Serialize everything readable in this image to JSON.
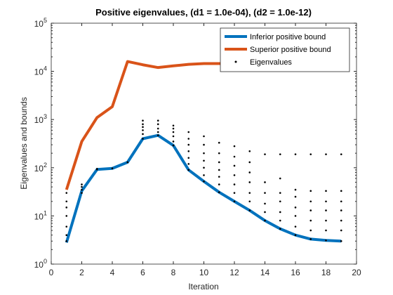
{
  "chart_data": {
    "type": "line",
    "title": "Positive eigenvalues, (d1 = 1.0e-04), (d2 = 1.0e-12)",
    "xlabel": "Iteration",
    "ylabel": "Eigenvalues and bounds",
    "xlim": [
      0,
      20
    ],
    "xticks": [
      0,
      2,
      4,
      6,
      8,
      10,
      12,
      14,
      16,
      18,
      20
    ],
    "ylim": [
      1,
      100000
    ],
    "yscale": "log",
    "yticks": [
      {
        "value": 1,
        "label": "10",
        "exponent": "0"
      },
      {
        "value": 10,
        "label": "10",
        "exponent": "1"
      },
      {
        "value": 100,
        "label": "10",
        "exponent": "2"
      },
      {
        "value": 1000,
        "label": "10",
        "exponent": "3"
      },
      {
        "value": 10000,
        "label": "10",
        "exponent": "4"
      },
      {
        "value": 100000,
        "label": "10",
        "exponent": "5"
      }
    ],
    "legend": "northeast",
    "series": [
      {
        "name": "Inferior positive bound",
        "color": "#0072BD",
        "mode": "line",
        "x": [
          1,
          2,
          3,
          4,
          5,
          6,
          7,
          8,
          9,
          10,
          11,
          12,
          13,
          14,
          15,
          16,
          17,
          18,
          19
        ],
        "values": [
          2.8,
          33,
          92,
          97,
          130,
          400,
          470,
          290,
          90,
          52,
          31,
          20,
          13,
          8,
          5.4,
          4,
          3.3,
          3.1,
          3.0
        ]
      },
      {
        "name": "Superior positive bound",
        "color": "#D95319",
        "mode": "line",
        "x": [
          1,
          2,
          3,
          4,
          5,
          6,
          7,
          8,
          9,
          10,
          11,
          12,
          13,
          14,
          15,
          16,
          17,
          18,
          19
        ],
        "values": [
          35,
          350,
          1100,
          1850,
          16000,
          13700,
          12000,
          13000,
          14000,
          14500,
          14500,
          14500,
          14500,
          14500,
          14500,
          14500,
          14500,
          14500,
          14500
        ]
      },
      {
        "name": "Eigenvalues",
        "color": "#000000",
        "mode": "markers",
        "x": [
          1,
          1,
          1,
          1,
          1,
          1,
          1,
          2,
          2,
          2,
          2,
          3,
          3,
          4,
          5,
          6,
          6,
          6,
          6,
          6,
          6,
          7,
          7,
          7,
          7,
          7,
          8,
          8,
          8,
          8,
          8,
          8,
          9,
          9,
          9,
          9,
          9,
          9,
          9,
          10,
          10,
          10,
          10,
          10,
          10,
          10,
          11,
          11,
          11,
          11,
          11,
          11,
          11,
          12,
          12,
          12,
          12,
          12,
          12,
          12,
          13,
          13,
          13,
          13,
          13,
          13,
          13,
          14,
          14,
          14,
          14,
          14,
          14,
          15,
          15,
          15,
          15,
          15,
          15,
          15,
          16,
          16,
          16,
          16,
          16,
          16,
          16,
          17,
          17,
          17,
          17,
          17,
          17,
          17,
          18,
          18,
          18,
          18,
          18,
          18,
          18,
          19,
          19,
          19,
          19,
          19,
          19,
          19
        ],
        "values": [
          3,
          4,
          6,
          10,
          15,
          20,
          30,
          30,
          35,
          40,
          45,
          92,
          95,
          97,
          130,
          400,
          500,
          600,
          700,
          800,
          950,
          470,
          550,
          650,
          800,
          950,
          290,
          350,
          450,
          550,
          650,
          750,
          90,
          120,
          160,
          220,
          300,
          400,
          550,
          52,
          70,
          100,
          140,
          200,
          300,
          450,
          31,
          45,
          65,
          90,
          130,
          200,
          330,
          20,
          30,
          45,
          70,
          110,
          170,
          280,
          13,
          20,
          30,
          50,
          80,
          130,
          220,
          8,
          12,
          18,
          30,
          50,
          190,
          5.4,
          8,
          12,
          20,
          30,
          60,
          190,
          4,
          6,
          10,
          15,
          25,
          35,
          190,
          3.3,
          5,
          8,
          13,
          20,
          33,
          190,
          3.1,
          5,
          8,
          13,
          20,
          33,
          190,
          3.0,
          5,
          8,
          13,
          20,
          33,
          190
        ]
      }
    ]
  }
}
